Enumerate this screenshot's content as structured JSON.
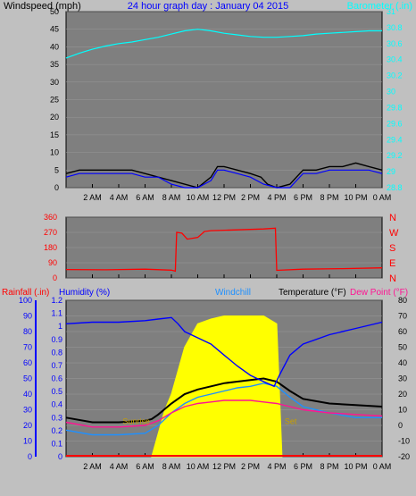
{
  "title": "24 hour graph day : January 04 2015",
  "x_ticks": [
    "2 AM",
    "4 AM",
    "6 AM",
    "8 AM",
    "10 AM",
    "12 PM",
    "2 PM",
    "4 PM",
    "6 PM",
    "8 PM",
    "10 PM",
    "0 AM"
  ],
  "colors": {
    "background": "#c0c0c0",
    "plot_bg": "#7f7f7f",
    "wind": "#000000",
    "gust": "#0000ff",
    "baro": "#00ffff",
    "direction": "#ff0000",
    "rain": "#ff0000",
    "humidity": "#0000ff",
    "windchill": "#1e90ff",
    "temperature": "#000000",
    "dewpoint": "#ff1493",
    "solar": "#ffff00"
  },
  "chart_data": [
    {
      "type": "line",
      "name": "wind-baro",
      "title": "24 hour graph day : January 04 2015",
      "ylabel": "Windspeed (mph)",
      "y2label": "Barometer (.in)",
      "ylim": [
        0,
        50
      ],
      "y_ticks": [
        "0",
        "5",
        "10",
        "15",
        "20",
        "25",
        "30",
        "35",
        "40",
        "45",
        "50"
      ],
      "y2lim": [
        28.8,
        31
      ],
      "y2_ticks": [
        "28.8",
        "29",
        "29.2",
        "29.4",
        "29.6",
        "29.8",
        "30",
        "30.2",
        "30.4",
        "30.6",
        "30.8",
        "31"
      ],
      "x_hours": [
        0,
        24
      ],
      "series": [
        {
          "key": "baro",
          "axis": "right",
          "values": [
            [
              0,
              30.42
            ],
            [
              1,
              30.48
            ],
            [
              2,
              30.53
            ],
            [
              3,
              30.57
            ],
            [
              4,
              30.6
            ],
            [
              5,
              30.62
            ],
            [
              6,
              30.65
            ],
            [
              7,
              30.68
            ],
            [
              8,
              30.72
            ],
            [
              9,
              30.76
            ],
            [
              10,
              30.78
            ],
            [
              11,
              30.76
            ],
            [
              12,
              30.73
            ],
            [
              13,
              30.71
            ],
            [
              14,
              30.69
            ],
            [
              15,
              30.68
            ],
            [
              16,
              30.68
            ],
            [
              17,
              30.69
            ],
            [
              18,
              30.7
            ],
            [
              19,
              30.72
            ],
            [
              20,
              30.73
            ],
            [
              21,
              30.74
            ],
            [
              22,
              30.75
            ],
            [
              23,
              30.76
            ],
            [
              24,
              30.76
            ]
          ]
        },
        {
          "key": "wind",
          "axis": "left",
          "values": [
            [
              0,
              4
            ],
            [
              1,
              5
            ],
            [
              2,
              5
            ],
            [
              3,
              5
            ],
            [
              4,
              5
            ],
            [
              5,
              5
            ],
            [
              6,
              4
            ],
            [
              7,
              3
            ],
            [
              8,
              2
            ],
            [
              9,
              1
            ],
            [
              10,
              0
            ],
            [
              11,
              3
            ],
            [
              11.5,
              6
            ],
            [
              12,
              6
            ],
            [
              13,
              5
            ],
            [
              14,
              4
            ],
            [
              14.8,
              3
            ],
            [
              15.3,
              1
            ],
            [
              16,
              0
            ],
            [
              17,
              1
            ],
            [
              17.5,
              3
            ],
            [
              18,
              5
            ],
            [
              19,
              5
            ],
            [
              20,
              6
            ],
            [
              21,
              6
            ],
            [
              22,
              7
            ],
            [
              23,
              6
            ],
            [
              24,
              5
            ]
          ]
        },
        {
          "key": "gust",
          "axis": "left",
          "values": [
            [
              0,
              3
            ],
            [
              1,
              4
            ],
            [
              2,
              4
            ],
            [
              3,
              4
            ],
            [
              4,
              4
            ],
            [
              5,
              4
            ],
            [
              6,
              3
            ],
            [
              7,
              3
            ],
            [
              8,
              1
            ],
            [
              9,
              0
            ],
            [
              10,
              0
            ],
            [
              11,
              2
            ],
            [
              11.5,
              5
            ],
            [
              12,
              5
            ],
            [
              13,
              4
            ],
            [
              14,
              3
            ],
            [
              15,
              1
            ],
            [
              16,
              0
            ],
            [
              17,
              0
            ],
            [
              17.5,
              2
            ],
            [
              18,
              4
            ],
            [
              19,
              4
            ],
            [
              20,
              5
            ],
            [
              21,
              5
            ],
            [
              22,
              5
            ],
            [
              23,
              5
            ],
            [
              24,
              4
            ]
          ]
        }
      ]
    },
    {
      "type": "line",
      "name": "direction",
      "ylim": [
        0,
        360
      ],
      "y_ticks": [
        "0",
        "90",
        "180",
        "270",
        "360"
      ],
      "y2_ticks": [
        "N",
        "E",
        "S",
        "W",
        "N"
      ],
      "series": [
        {
          "key": "direction",
          "values": [
            [
              0,
              50
            ],
            [
              3,
              48
            ],
            [
              6,
              52
            ],
            [
              8,
              46
            ],
            [
              8.3,
              40
            ],
            [
              8.4,
              270
            ],
            [
              8.8,
              265
            ],
            [
              9.2,
              230
            ],
            [
              10,
              240
            ],
            [
              10.5,
              275
            ],
            [
              11,
              280
            ],
            [
              13,
              285
            ],
            [
              15,
              290
            ],
            [
              15.9,
              295
            ],
            [
              16,
              45
            ],
            [
              18,
              52
            ],
            [
              21,
              55
            ],
            [
              24,
              60
            ]
          ]
        }
      ]
    },
    {
      "type": "line",
      "name": "temp-humidity",
      "legend": [
        "Rainfall (.in)",
        "Humidity (%)",
        "Windchill",
        "Temperature (°F)",
        "Dew Point (°F)"
      ],
      "ylim_rain": [
        0,
        1.2
      ],
      "rain_ticks": [
        "0",
        "0.1",
        "0.2",
        "0.3",
        "0.4",
        "0.5",
        "0.6",
        "0.7",
        "0.8",
        "0.9",
        "1",
        "1.1",
        "1.2"
      ],
      "ylim_hum": [
        0,
        100
      ],
      "hum_ticks": [
        "0",
        "10",
        "20",
        "30",
        "40",
        "50",
        "60",
        "70",
        "80",
        "90",
        "100"
      ],
      "ylim_temp": [
        -20,
        80
      ],
      "temp_ticks": [
        "-20",
        "-10",
        "0",
        "10",
        "20",
        "30",
        "40",
        "50",
        "60",
        "70",
        "80"
      ],
      "annotations": [
        "Sunrise",
        "Set"
      ],
      "solar_window": [
        6.5,
        16.4
      ],
      "series": [
        {
          "key": "humidity",
          "values": [
            [
              0,
              85
            ],
            [
              2,
              86
            ],
            [
              4,
              86
            ],
            [
              6,
              87
            ],
            [
              7,
              88
            ],
            [
              8,
              89
            ],
            [
              8.5,
              85
            ],
            [
              9,
              80
            ],
            [
              10,
              76
            ],
            [
              11,
              72
            ],
            [
              12,
              65
            ],
            [
              13,
              58
            ],
            [
              14,
              52
            ],
            [
              15,
              48
            ],
            [
              15.8,
              45
            ],
            [
              16.2,
              52
            ],
            [
              17,
              65
            ],
            [
              18,
              72
            ],
            [
              20,
              78
            ],
            [
              22,
              82
            ],
            [
              24,
              86
            ]
          ]
        },
        {
          "key": "temperature",
          "values": [
            [
              0,
              5
            ],
            [
              2,
              2
            ],
            [
              4,
              2
            ],
            [
              6,
              3
            ],
            [
              6.5,
              4
            ],
            [
              7,
              7
            ],
            [
              8,
              14
            ],
            [
              9,
              20
            ],
            [
              10,
              23
            ],
            [
              11,
              25
            ],
            [
              12,
              27
            ],
            [
              13,
              28
            ],
            [
              14,
              29
            ],
            [
              15,
              30
            ],
            [
              16,
              28
            ],
            [
              17,
              22
            ],
            [
              18,
              17
            ],
            [
              20,
              14
            ],
            [
              22,
              13
            ],
            [
              24,
              12
            ]
          ]
        },
        {
          "key": "dewpoint",
          "values": [
            [
              0,
              2
            ],
            [
              2,
              -1
            ],
            [
              4,
              -1
            ],
            [
              6,
              0
            ],
            [
              7,
              3
            ],
            [
              8,
              8
            ],
            [
              9,
              12
            ],
            [
              10,
              14
            ],
            [
              11,
              15
            ],
            [
              12,
              16
            ],
            [
              13,
              16
            ],
            [
              14,
              16
            ],
            [
              15,
              15
            ],
            [
              16,
              14
            ],
            [
              17,
              12
            ],
            [
              18,
              10
            ],
            [
              20,
              8
            ],
            [
              22,
              7
            ],
            [
              24,
              6
            ]
          ]
        },
        {
          "key": "windchill",
          "values": [
            [
              0,
              -3
            ],
            [
              2,
              -6
            ],
            [
              4,
              -6
            ],
            [
              6,
              -5
            ],
            [
              7,
              0
            ],
            [
              8,
              8
            ],
            [
              9,
              14
            ],
            [
              10,
              18
            ],
            [
              11,
              20
            ],
            [
              12,
              22
            ],
            [
              13,
              24
            ],
            [
              14,
              25
            ],
            [
              15,
              27
            ],
            [
              16,
              25
            ],
            [
              17,
              18
            ],
            [
              18,
              12
            ],
            [
              20,
              8
            ],
            [
              22,
              5
            ],
            [
              24,
              5
            ]
          ]
        },
        {
          "key": "solar",
          "values": [
            [
              6.5,
              0
            ],
            [
              7.5,
              30
            ],
            [
              8,
              40
            ],
            [
              9,
              70
            ],
            [
              10,
              85
            ],
            [
              11,
              88
            ],
            [
              12,
              90
            ],
            [
              13,
              90
            ],
            [
              14,
              90
            ],
            [
              15,
              90
            ],
            [
              16,
              85
            ],
            [
              16.4,
              0
            ]
          ]
        }
      ]
    }
  ]
}
